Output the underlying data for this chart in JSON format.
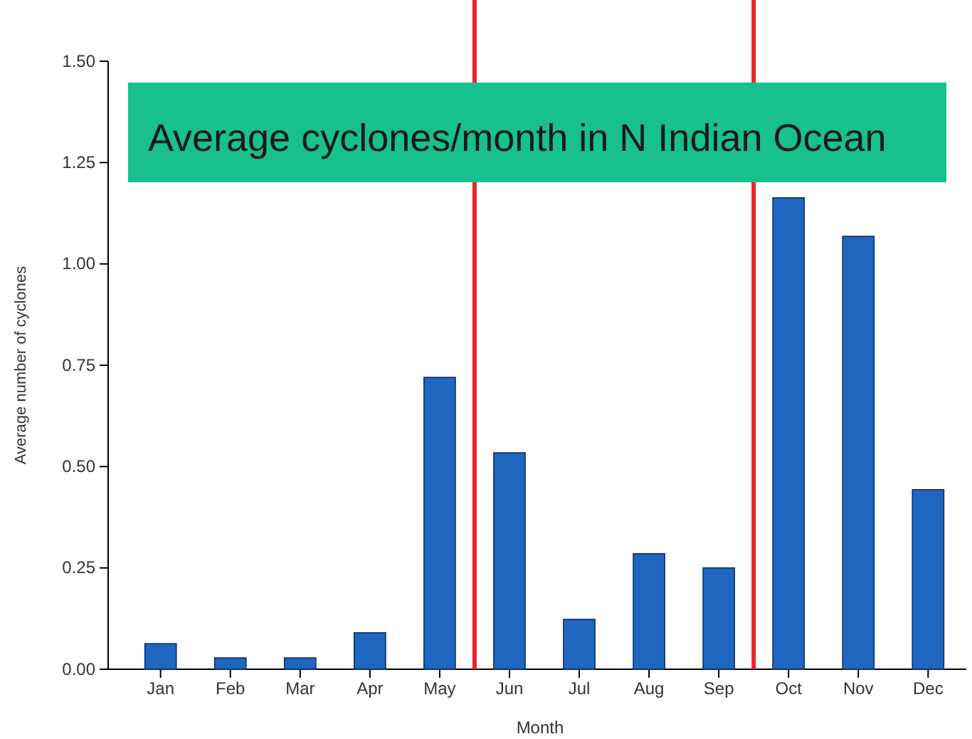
{
  "chart_data": {
    "type": "bar",
    "title": "Average cyclones/month in N Indian Ocean",
    "xlabel": "Month",
    "ylabel": "Average number of cyclones",
    "categories": [
      "Jan",
      "Feb",
      "Mar",
      "Apr",
      "May",
      "Jun",
      "Jul",
      "Aug",
      "Sep",
      "Oct",
      "Nov",
      "Dec"
    ],
    "values": [
      0.063,
      0.028,
      0.028,
      0.09,
      0.72,
      0.534,
      0.123,
      0.285,
      0.25,
      1.163,
      1.068,
      0.443
    ],
    "color": "#1f66c1",
    "ylim": [
      0,
      1.5
    ],
    "yticks": [
      {
        "value": 0,
        "label": "0.00"
      },
      {
        "value": 0.25,
        "label": "0.25"
      },
      {
        "value": 0.5,
        "label": "0.50"
      },
      {
        "value": 0.75,
        "label": "0.75"
      },
      {
        "value": 1,
        "label": "1.00"
      },
      {
        "value": 1.25,
        "label": "1.25"
      },
      {
        "value": 1.5,
        "label": "1.50"
      }
    ],
    "grid": false
  }
}
